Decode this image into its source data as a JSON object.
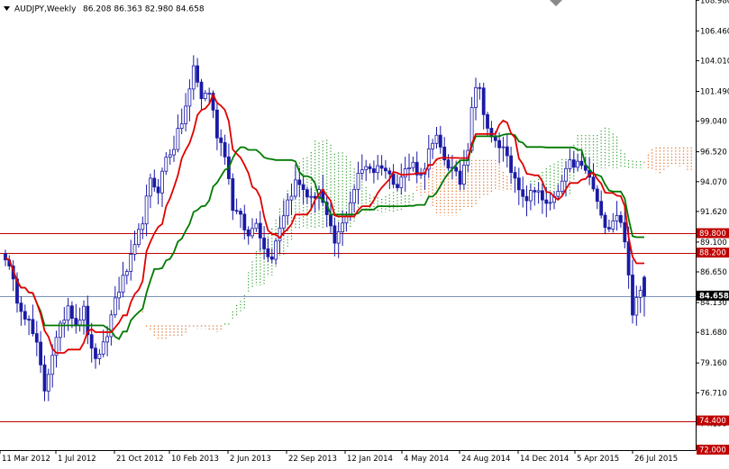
{
  "header": {
    "symbol_timeframe": "AUDJPY,Weekly",
    "ohlc": "86.208 86.363 82.980 84.658"
  },
  "colors": {
    "background": "#ffffff",
    "candle": "#1a1aa6",
    "tenkan": "#e00000",
    "kijun": "#007a00",
    "kumo_bull": "#2e9b2e",
    "kumo_bear": "#e06a20",
    "level_line": "#c00000",
    "level_label_bg": "#c00000",
    "current_line": "#7f93b8",
    "current_label_bg": "#000000"
  },
  "chart_data": {
    "type": "candlestick",
    "title": "AUDJPY,Weekly",
    "ylim": [
      72.0,
      109.0
    ],
    "y_ticks": [
      "108.980",
      "106.460",
      "104.010",
      "101.490",
      "99.040",
      "96.520",
      "94.070",
      "91.620",
      "89.100",
      "86.650",
      "84.130",
      "81.680",
      "79.160",
      "76.710",
      "74.190",
      "72.000"
    ],
    "x_labels": [
      "11 Mar 2012",
      "1 Jul 2012",
      "21 Oct 2012",
      "10 Feb 2013",
      "2 Jun 2013",
      "22 Sep 2013",
      "12 Jan 2014",
      "4 May 2014",
      "24 Aug 2014",
      "14 Dec 2014",
      "5 Apr 2015",
      "26 Jul 2015"
    ],
    "horizontal_levels": [
      {
        "value": 89.8,
        "label": "89.800"
      },
      {
        "value": 88.2,
        "label": "88.200"
      },
      {
        "value": 74.4,
        "label": "74.400"
      },
      {
        "value": 72.0,
        "label": "72.000"
      }
    ],
    "current_price": {
      "value": 84.658,
      "label": "84.658"
    },
    "price_path": [
      [
        0,
        88.0
      ],
      [
        3,
        84.5
      ],
      [
        6,
        82.5
      ],
      [
        8,
        80.5
      ],
      [
        10,
        77.0
      ],
      [
        12,
        80.0
      ],
      [
        14,
        82.0
      ],
      [
        16,
        84.0
      ],
      [
        18,
        82.5
      ],
      [
        20,
        83.5
      ],
      [
        22,
        80.0
      ],
      [
        24,
        79.5
      ],
      [
        26,
        81.5
      ],
      [
        28,
        84.5
      ],
      [
        30,
        86.0
      ],
      [
        33,
        88.5
      ],
      [
        35,
        91.0
      ],
      [
        37,
        94.0
      ],
      [
        39,
        93.5
      ],
      [
        41,
        96.0
      ],
      [
        43,
        97.0
      ],
      [
        45,
        99.0
      ],
      [
        47,
        101.5
      ],
      [
        48,
        103.5
      ],
      [
        50,
        101.0
      ],
      [
        52,
        101.5
      ],
      [
        54,
        98.0
      ],
      [
        56,
        96.5
      ],
      [
        58,
        92.0
      ],
      [
        60,
        91.0
      ],
      [
        62,
        89.5
      ],
      [
        64,
        91.0
      ],
      [
        66,
        88.5
      ],
      [
        68,
        88.0
      ],
      [
        70,
        90.5
      ],
      [
        72,
        92.5
      ],
      [
        74,
        94.0
      ],
      [
        76,
        93.5
      ],
      [
        78,
        92.5
      ],
      [
        80,
        93.5
      ],
      [
        82,
        91.0
      ],
      [
        84,
        89.0
      ],
      [
        86,
        90.5
      ],
      [
        88,
        92.5
      ],
      [
        90,
        94.5
      ],
      [
        92,
        95.5
      ],
      [
        94,
        95.0
      ],
      [
        96,
        95.5
      ],
      [
        98,
        94.5
      ],
      [
        100,
        94.0
      ],
      [
        102,
        95.0
      ],
      [
        104,
        95.5
      ],
      [
        106,
        94.5
      ],
      [
        108,
        96.5
      ],
      [
        110,
        97.5
      ],
      [
        112,
        96.0
      ],
      [
        114,
        95.0
      ],
      [
        116,
        94.0
      ],
      [
        118,
        97.0
      ],
      [
        119,
        100.5
      ],
      [
        120,
        102.0
      ],
      [
        121,
        101.5
      ],
      [
        122,
        100.0
      ],
      [
        123,
        98.5
      ],
      [
        124,
        97.5
      ],
      [
        126,
        97.0
      ],
      [
        128,
        96.5
      ],
      [
        130,
        94.0
      ],
      [
        132,
        92.5
      ],
      [
        134,
        93.0
      ],
      [
        136,
        93.5
      ],
      [
        138,
        92.0
      ],
      [
        140,
        92.5
      ],
      [
        142,
        94.0
      ],
      [
        144,
        95.5
      ],
      [
        146,
        95.5
      ],
      [
        148,
        95.0
      ],
      [
        150,
        93.5
      ],
      [
        152,
        91.0
      ],
      [
        154,
        90.5
      ],
      [
        156,
        91.5
      ],
      [
        158,
        89.5
      ],
      [
        159,
        86.0
      ],
      [
        160,
        83.0
      ],
      [
        161,
        84.5
      ],
      [
        162,
        85.5
      ],
      [
        163,
        84.66
      ]
    ]
  }
}
